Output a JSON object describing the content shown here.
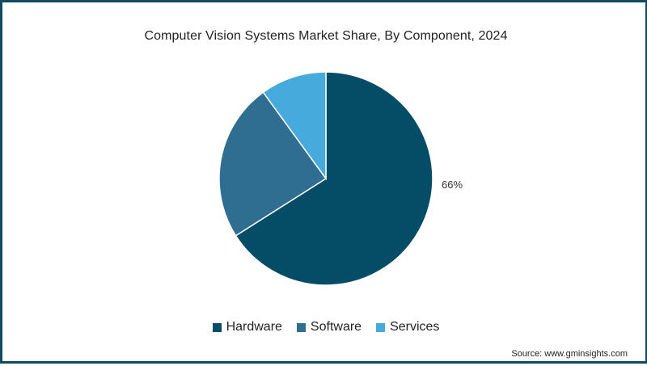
{
  "chart_data": {
    "type": "pie",
    "title": "Computer Vision Systems Market Share, By Component, 2024",
    "categories": [
      "Hardware",
      "Software",
      "Services"
    ],
    "values": [
      66,
      24,
      10
    ],
    "unit": "%",
    "colors": [
      "#054d66",
      "#2f6e91",
      "#46aadd"
    ],
    "data_labels": [
      {
        "category": "Hardware",
        "text": "66%"
      }
    ],
    "start_angle_deg": 0,
    "direction": "clockwise",
    "legend_position": "bottom"
  },
  "title": "Computer Vision Systems Market Share, By Component, 2024",
  "label_hardware": "66%",
  "legend": [
    {
      "label": "Hardware",
      "color": "#054d66"
    },
    {
      "label": "Software",
      "color": "#2f6e91"
    },
    {
      "label": "Services",
      "color": "#46aadd"
    }
  ],
  "source": "Source: www.gminsights.com",
  "colors": {
    "frame": "#0f4a63",
    "background": "#ffffff"
  }
}
